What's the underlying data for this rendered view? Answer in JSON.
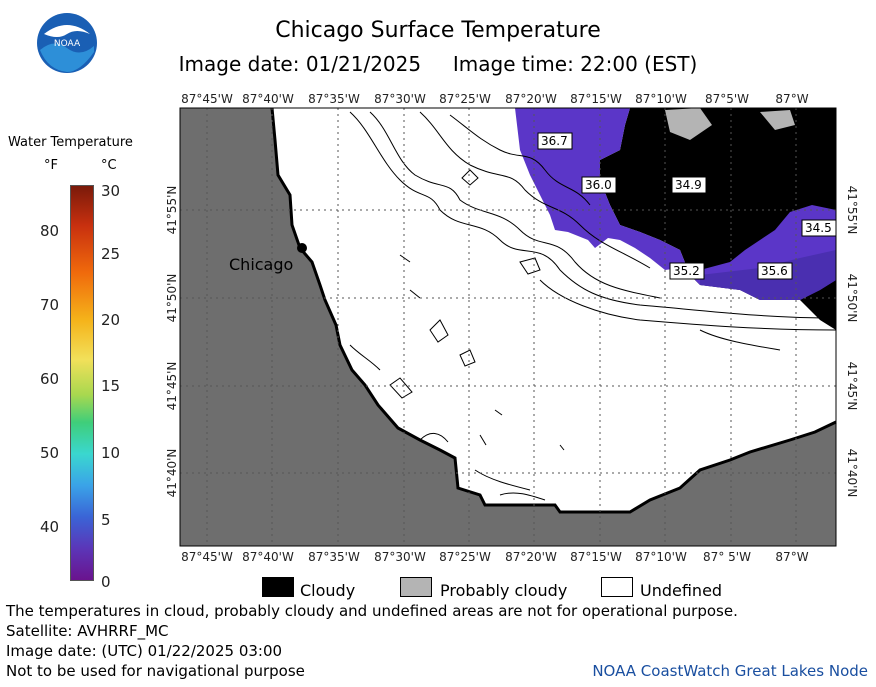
{
  "title": "Chicago Surface Temperature",
  "image_date_label": "Image date: 01/21/2025",
  "image_time_label": "Image time: 22:00 (EST)",
  "logo_text": "NOAA",
  "legend": {
    "title": "Water Temperature",
    "unit_f": "°F",
    "unit_c": "°C",
    "f_ticks": [
      "80",
      "70",
      "60",
      "50",
      "40"
    ],
    "c_ticks": [
      "30",
      "25",
      "20",
      "15",
      "10",
      "5",
      "0"
    ]
  },
  "map": {
    "top_lon_labels": [
      "87°45'W",
      "87°40'W",
      "87°35'W",
      "87°30'W",
      "87°25'W",
      "87°20'W",
      "87°15'W",
      "87°10'W",
      "87°5'W",
      "87°W"
    ],
    "bottom_lon_labels": [
      "87°45'W",
      "87°40'W",
      "87°35'W",
      "87°30'W",
      "87°25'W",
      "87°20'W",
      "87°15'W",
      "87°10'W",
      "87° 5'W",
      "87°W"
    ],
    "lat_labels": [
      "41°55'N",
      "41°50'N",
      "41°45'N",
      "41°40'N"
    ],
    "city": "Chicago",
    "temps": [
      "36.7",
      "36.0",
      "34.9",
      "34.5",
      "35.2",
      "35.6"
    ]
  },
  "bottom_legend": {
    "cloudy": "Cloudy",
    "probably_cloudy": "Probably cloudy",
    "undefined": "Undefined"
  },
  "notes": {
    "disclaimer": "The temperatures in cloud, probably cloudy and undefined areas are not for operational purpose.",
    "satellite": "Satellite: AVHRRF_MC",
    "utc_date": "Image date: (UTC) 01/22/2025  03:00",
    "navigation": "Not to be used for navigational purpose",
    "credit": "NOAA CoastWatch Great Lakes Node"
  }
}
